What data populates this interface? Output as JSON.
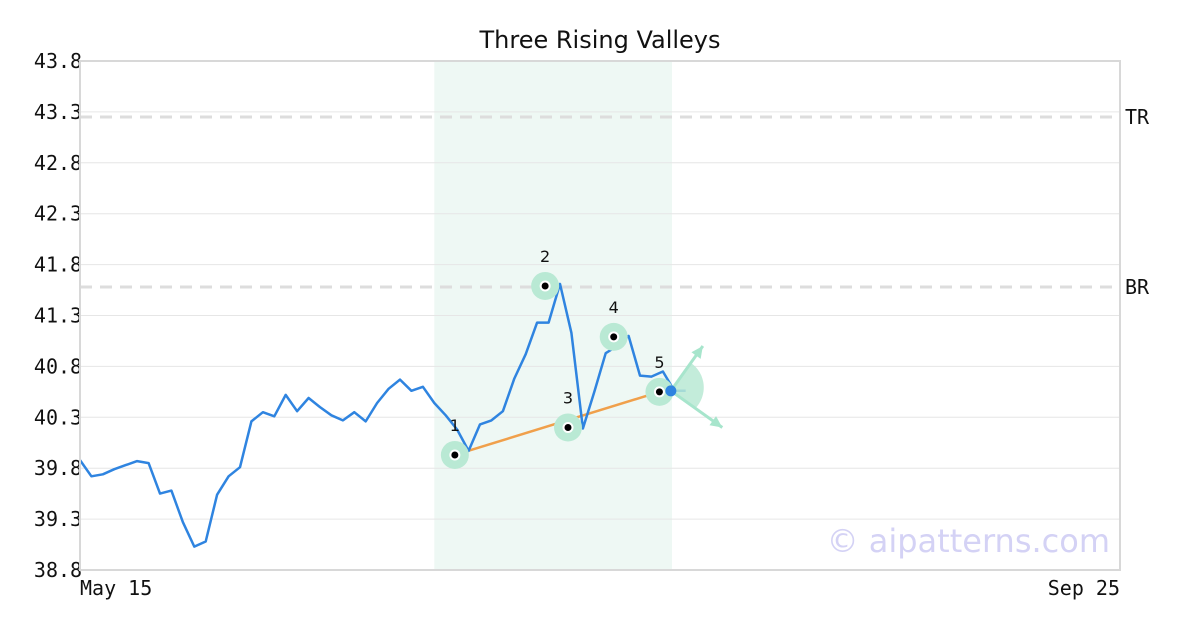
{
  "chart_data": {
    "type": "line",
    "title": "Three Rising Valleys",
    "xlabel": "",
    "ylabel": "",
    "ylim": [
      38.8,
      43.8
    ],
    "y_ticks": [
      "38.8",
      "39.3",
      "39.8",
      "40.3",
      "40.8",
      "41.3",
      "41.8",
      "42.3",
      "42.8",
      "43.3",
      "43.8"
    ],
    "x_ticks": [
      {
        "index": 0,
        "label": "May 15"
      },
      {
        "index": 91,
        "label": "Sep 25"
      }
    ],
    "grid": true,
    "legend": "none",
    "series": [
      {
        "values": [
          39.88,
          39.72,
          39.74,
          39.79,
          39.83,
          39.87,
          39.85,
          39.55,
          39.58,
          39.27,
          39.03,
          39.08,
          39.54,
          39.72,
          39.81,
          40.26,
          40.35,
          40.31,
          40.52,
          40.36,
          40.49,
          40.4,
          40.32,
          40.27,
          40.35,
          40.26,
          40.44,
          40.58,
          40.67,
          40.56,
          40.6,
          40.44,
          40.32,
          40.18,
          39.97,
          40.23,
          40.27,
          40.36,
          40.68,
          40.92,
          41.23,
          41.23,
          41.61,
          41.13,
          40.19,
          40.55,
          40.93,
          41.0,
          41.1,
          40.71,
          40.7,
          40.75,
          40.56,
          40.56
        ]
      }
    ],
    "highlight_x_range": [
      31,
      51.8
    ],
    "levels": [
      {
        "label": "TR",
        "value": 43.25
      },
      {
        "label": "BR",
        "value": 41.58
      }
    ],
    "pattern_points": [
      {
        "label": "1",
        "x": 32.8,
        "y": 39.93
      },
      {
        "label": "2",
        "x": 40.7,
        "y": 41.59
      },
      {
        "label": "3",
        "x": 42.7,
        "y": 40.2
      },
      {
        "label": "4",
        "x": 46.7,
        "y": 41.09
      },
      {
        "label": "5",
        "x": 50.7,
        "y": 40.55
      }
    ],
    "trendline": {
      "from": [
        32.8,
        39.93
      ],
      "to": [
        50.7,
        40.55
      ]
    },
    "current_point": {
      "x": 51.7,
      "y": 40.56
    },
    "projection": {
      "up": [
        54.5,
        41.0
      ],
      "down": [
        56.2,
        40.2
      ]
    }
  },
  "watermark": "© aipatterns.com",
  "colors": {
    "line": "#2f84e0",
    "trend": "#f0a04b",
    "highlight": "#eef8f4",
    "marker_ring": "#b9e9d4",
    "arrow": "#a7e5cc",
    "level": "#dddddd",
    "grid": "#e6e6e6",
    "frame": "#d8d8d8"
  }
}
